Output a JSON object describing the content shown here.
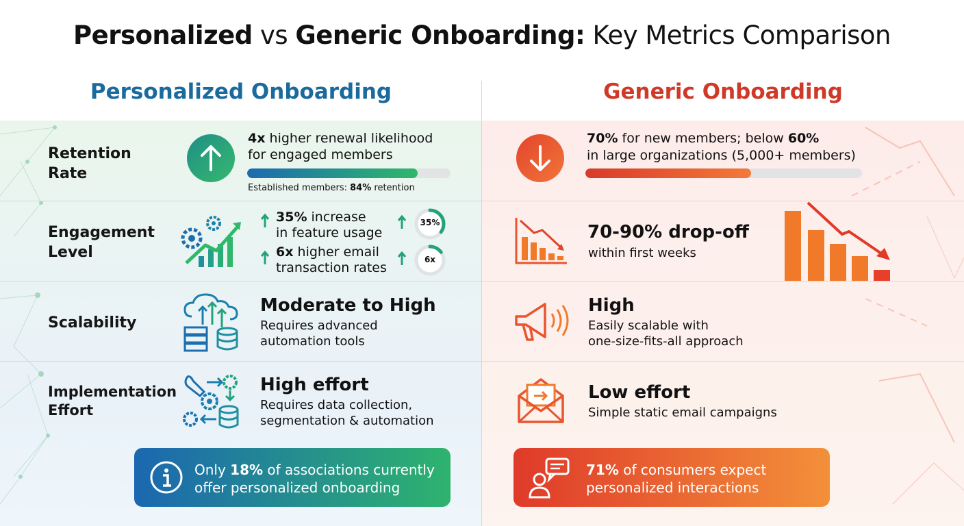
{
  "title": {
    "part1": "Personalized",
    "part2": " vs ",
    "part3": "Generic Onboarding:",
    "part4": " Key Metrics Comparison"
  },
  "columns": {
    "left": "Personalized Onboarding",
    "right": "Generic Onboarding"
  },
  "rows": {
    "retention": {
      "label_line1": "Retention",
      "label_line2": "Rate",
      "left": {
        "bold": "4x",
        "line1_rest": " higher renewal likelihood",
        "line2": "for engaged members",
        "bar_fraction": 0.84,
        "note_prefix": "Established members: ",
        "note_bold": "84%",
        "note_suffix": " retention"
      },
      "right": {
        "bold1": "70%",
        "line1_mid": " for new members; below ",
        "bold2": "60%",
        "line2": "in large organizations (5,000+ members)",
        "bar_fraction": 0.6
      }
    },
    "engagement": {
      "label_line1": "Engagement",
      "label_line2": "Level",
      "left": {
        "stat1_bold": "35%",
        "stat1_rest": " increase",
        "stat1_line2": "in feature usage",
        "stat1_badge": "35%",
        "stat1_fraction": 0.35,
        "stat2_bold": "6x",
        "stat2_rest": " higher email",
        "stat2_line2": "transaction rates",
        "stat2_badge": "6x",
        "stat2_fraction": 0.15
      },
      "right": {
        "big": "70-90% drop-off",
        "sub": "within first weeks"
      }
    },
    "scalability": {
      "label_line1": "Scalability",
      "left": {
        "big": "Moderate to High",
        "sub1": "Requires advanced",
        "sub2": "automation tools"
      },
      "right": {
        "big": "High",
        "sub1": "Easily scalable with",
        "sub2": "one-size-fits-all approach"
      }
    },
    "implementation": {
      "label_line1": "Implementation",
      "label_line2": "Effort",
      "left": {
        "big": "High effort",
        "sub1": "Requires data collection,",
        "sub2": "segmentation & automation"
      },
      "right": {
        "big": "Low effort",
        "sub1": "Simple static email campaigns"
      }
    }
  },
  "callouts": {
    "left": {
      "prefix": "Only ",
      "bold": "18%",
      "rest": " of associations currently",
      "line2": "offer personalized onboarding"
    },
    "right": {
      "bold": "71%",
      "rest": " of consumers expect",
      "line2": "personalized interactions"
    }
  },
  "icons": {
    "retention_left": "arrow-up-icon",
    "retention_right": "arrow-down-icon",
    "engagement_left": "gears-growth-chart-icon",
    "engagement_right": "declining-bar-chart-icon",
    "scalability_left": "cloud-server-database-icon",
    "scalability_right": "megaphone-icon",
    "implementation_left": "wrench-gears-database-icon",
    "implementation_right": "envelope-icon",
    "callout_left": "info-icon",
    "callout_right": "person-chat-icon"
  },
  "colors": {
    "personalized": "#1a6a9e",
    "personalized_green": "#2eb36e",
    "generic": "#cf3a28",
    "generic_orange": "#f08a2a"
  }
}
